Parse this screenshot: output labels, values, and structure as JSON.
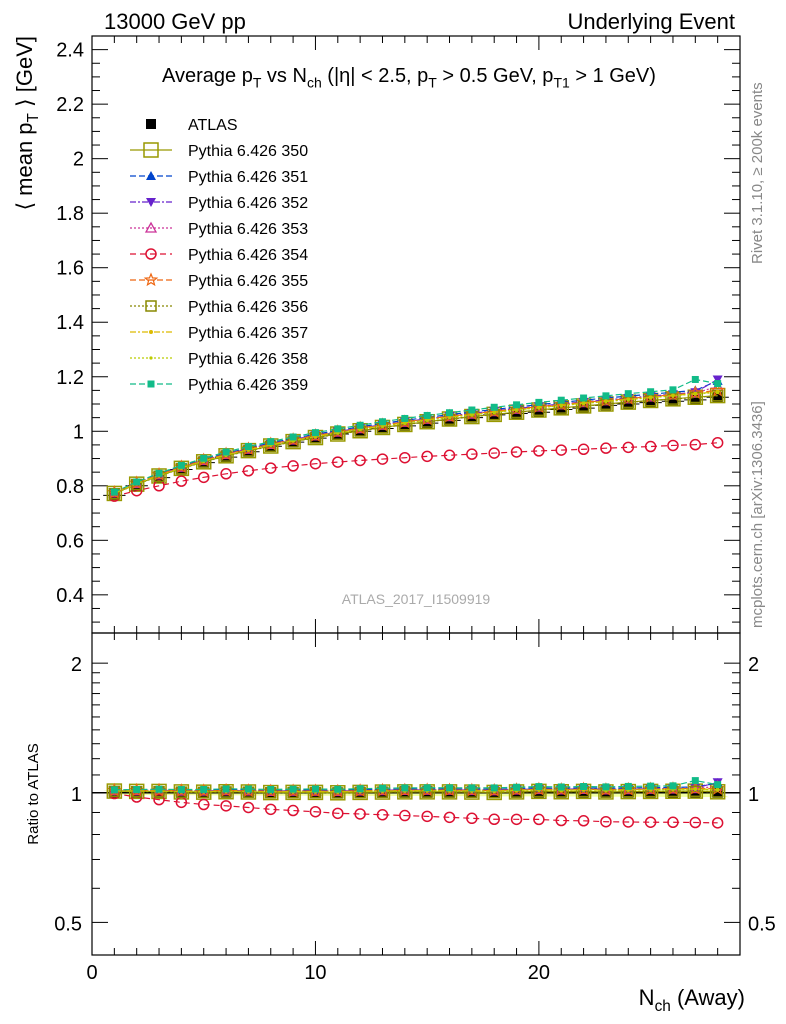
{
  "header": {
    "left": "13000 GeV pp",
    "right": "Underlying Event"
  },
  "side_labels": {
    "rivet": "Rivet 3.1.10, ≥ 200k events",
    "mcplots": "mcplots.cern.ch [arXiv:1306.3436]"
  },
  "chart_data": {
    "type": "line",
    "title_parts": [
      "Average p",
      "T",
      " vs N",
      "ch",
      " (|η| < 2.5, p",
      "T",
      " > 0.5 GeV, p",
      "T1",
      " > 1 GeV)"
    ],
    "ylabel_parts": [
      "⟨ mean p",
      "T",
      " ⟩ [GeV]"
    ],
    "xlabel_parts": [
      "N",
      "ch",
      " (Away)"
    ],
    "ratio_ylabel": "Ratio to ATLAS",
    "watermark": "ATLAS_2017_I1509919",
    "xlim": [
      0,
      29
    ],
    "ylim": [
      0.26,
      2.45
    ],
    "ratio_ylim": [
      0.42,
      2.35
    ],
    "x_ticks": [
      0,
      10,
      20
    ],
    "x_tick_labels": [
      "0",
      "10",
      "20"
    ],
    "y_ticks": [
      0.4,
      0.6,
      0.8,
      1,
      1.2,
      1.4,
      1.6,
      1.8,
      2,
      2.2,
      2.4
    ],
    "y_tick_labels": [
      "0.4",
      "0.6",
      "0.8",
      "1",
      "1.2",
      "1.4",
      "1.6",
      "1.8",
      "2",
      "2.2",
      "2.4"
    ],
    "ratio_ticks": [
      0.5,
      1,
      2
    ],
    "ratio_tick_labels": [
      "0.5",
      "1",
      "2"
    ],
    "x": [
      1,
      2,
      3,
      4,
      5,
      6,
      7,
      8,
      9,
      10,
      11,
      12,
      13,
      14,
      15,
      16,
      17,
      18,
      19,
      20,
      21,
      22,
      23,
      24,
      25,
      26,
      27,
      28
    ],
    "series": [
      {
        "name": "ATLAS",
        "color": "#000000",
        "marker": "square-filled",
        "dash": "none",
        "values": [
          0.765,
          0.8,
          0.83,
          0.86,
          0.885,
          0.905,
          0.925,
          0.945,
          0.96,
          0.975,
          0.99,
          1.0,
          1.01,
          1.02,
          1.03,
          1.04,
          1.05,
          1.06,
          1.065,
          1.07,
          1.08,
          1.085,
          1.095,
          1.1,
          1.105,
          1.11,
          1.115,
          1.125
        ]
      },
      {
        "name": "Pythia 6.426 350",
        "color": "#999900",
        "marker": "square-open-large",
        "dash": "solid",
        "values": [
          0.772,
          0.806,
          0.836,
          0.864,
          0.888,
          0.91,
          0.929,
          0.946,
          0.962,
          0.977,
          0.99,
          1.002,
          1.014,
          1.025,
          1.035,
          1.045,
          1.054,
          1.062,
          1.07,
          1.078,
          1.086,
          1.093,
          1.1,
          1.107,
          1.113,
          1.119,
          1.125,
          1.131
        ]
      },
      {
        "name": "Pythia 6.426 351",
        "color": "#0044cc",
        "marker": "triangle-up-filled",
        "dash": "6,3",
        "values": [
          0.776,
          0.812,
          0.843,
          0.872,
          0.897,
          0.919,
          0.939,
          0.957,
          0.974,
          0.989,
          1.003,
          1.016,
          1.029,
          1.04,
          1.051,
          1.061,
          1.071,
          1.08,
          1.089,
          1.098,
          1.106,
          1.114,
          1.122,
          1.129,
          1.136,
          1.143,
          1.15,
          1.185
        ]
      },
      {
        "name": "Pythia 6.426 352",
        "color": "#6622cc",
        "marker": "triangle-down-filled",
        "dash": "6,2,2,2",
        "values": [
          0.774,
          0.81,
          0.841,
          0.869,
          0.894,
          0.916,
          0.936,
          0.954,
          0.97,
          0.985,
          0.999,
          1.012,
          1.024,
          1.035,
          1.046,
          1.056,
          1.066,
          1.075,
          1.084,
          1.092,
          1.1,
          1.108,
          1.115,
          1.122,
          1.129,
          1.136,
          1.143,
          1.19
        ]
      },
      {
        "name": "Pythia 6.426 353",
        "color": "#cc3399",
        "marker": "triangle-up-open",
        "dash": "2,2",
        "values": [
          0.774,
          0.809,
          0.84,
          0.868,
          0.893,
          0.915,
          0.934,
          0.952,
          0.968,
          0.983,
          0.997,
          1.01,
          1.022,
          1.033,
          1.044,
          1.054,
          1.063,
          1.072,
          1.081,
          1.089,
          1.097,
          1.105,
          1.112,
          1.119,
          1.126,
          1.133,
          1.14,
          1.165
        ]
      },
      {
        "name": "Pythia 6.426 354",
        "color": "#dd1133",
        "marker": "circle-open",
        "dash": "6,4",
        "values": [
          0.762,
          0.782,
          0.8,
          0.817,
          0.831,
          0.844,
          0.855,
          0.865,
          0.873,
          0.881,
          0.887,
          0.893,
          0.898,
          0.903,
          0.908,
          0.912,
          0.916,
          0.92,
          0.924,
          0.928,
          0.931,
          0.934,
          0.938,
          0.941,
          0.944,
          0.948,
          0.951,
          0.958
        ]
      },
      {
        "name": "Pythia 6.426 355",
        "color": "#ee6611",
        "marker": "star-open",
        "dash": "6,3",
        "values": [
          0.775,
          0.81,
          0.841,
          0.869,
          0.894,
          0.916,
          0.935,
          0.953,
          0.969,
          0.984,
          0.998,
          1.011,
          1.023,
          1.034,
          1.045,
          1.055,
          1.064,
          1.073,
          1.082,
          1.09,
          1.098,
          1.106,
          1.113,
          1.12,
          1.127,
          1.134,
          1.141,
          1.15
        ]
      },
      {
        "name": "Pythia 6.426 356",
        "color": "#888800",
        "marker": "square-open",
        "dash": "2,2",
        "values": [
          0.771,
          0.805,
          0.835,
          0.863,
          0.887,
          0.909,
          0.928,
          0.945,
          0.961,
          0.976,
          0.989,
          1.001,
          1.013,
          1.024,
          1.034,
          1.044,
          1.053,
          1.061,
          1.069,
          1.077,
          1.085,
          1.092,
          1.099,
          1.106,
          1.112,
          1.118,
          1.124,
          1.13
        ]
      },
      {
        "name": "Pythia 6.426 357",
        "color": "#ddbb00",
        "marker": "line-dot",
        "dash": "6,2,2,2",
        "values": [
          0.773,
          0.808,
          0.838,
          0.866,
          0.891,
          0.913,
          0.932,
          0.95,
          0.966,
          0.981,
          0.995,
          1.008,
          1.02,
          1.031,
          1.042,
          1.052,
          1.061,
          1.07,
          1.079,
          1.087,
          1.095,
          1.103,
          1.11,
          1.117,
          1.124,
          1.131,
          1.138,
          1.145
        ]
      },
      {
        "name": "Pythia 6.426 358",
        "color": "#bbcc00",
        "marker": "dot-small",
        "dash": "2,2",
        "values": [
          0.772,
          0.807,
          0.837,
          0.865,
          0.89,
          0.912,
          0.931,
          0.949,
          0.965,
          0.98,
          0.994,
          1.007,
          1.019,
          1.03,
          1.041,
          1.051,
          1.06,
          1.069,
          1.078,
          1.086,
          1.094,
          1.102,
          1.109,
          1.116,
          1.123,
          1.13,
          1.137,
          1.142
        ]
      },
      {
        "name": "Pythia 6.426 359",
        "color": "#11bb88",
        "marker": "square-filled-small",
        "dash": "6,3",
        "values": [
          0.777,
          0.814,
          0.846,
          0.875,
          0.901,
          0.924,
          0.944,
          0.962,
          0.979,
          0.995,
          1.009,
          1.022,
          1.035,
          1.047,
          1.058,
          1.068,
          1.078,
          1.088,
          1.097,
          1.106,
          1.114,
          1.122,
          1.13,
          1.138,
          1.145,
          1.152,
          1.19,
          1.175
        ]
      }
    ]
  }
}
